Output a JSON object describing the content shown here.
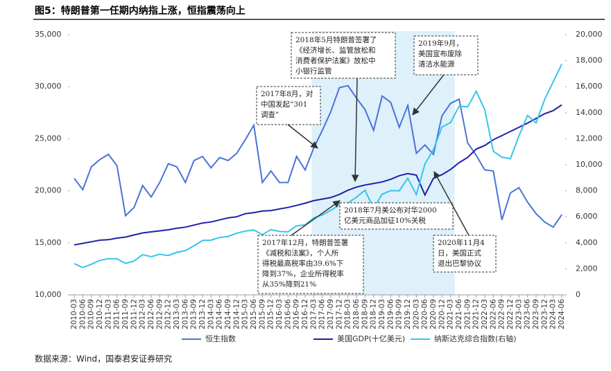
{
  "chart_data": {
    "type": "line",
    "title": "图5：特朗普第一任期内纳指上涨，恒指震荡向上",
    "source": "数据来源：Wind，国泰君安证券研究",
    "categories": [
      "2010-03",
      "2010-06",
      "2010-09",
      "2010-12",
      "2011-03",
      "2011-06",
      "2011-09",
      "2011-12",
      "2012-03",
      "2012-06",
      "2012-09",
      "2012-12",
      "2013-03",
      "2013-06",
      "2013-09",
      "2013-12",
      "2014-03",
      "2014-06",
      "2014-09",
      "2014-12",
      "2015-03",
      "2015-06",
      "2015-09",
      "2015-12",
      "2016-03",
      "2016-06",
      "2016-09",
      "2016-12",
      "2017-03",
      "2017-06",
      "2017-09",
      "2017-12",
      "2018-03",
      "2018-06",
      "2018-09",
      "2018-12",
      "2019-03",
      "2019-06",
      "2019-09",
      "2019-12",
      "2020-03",
      "2020-06",
      "2020-09",
      "2020-12",
      "2021-03",
      "2021-06",
      "2021-09",
      "2021-12",
      "2022-03",
      "2022-06",
      "2022-09",
      "2022-12",
      "2023-03",
      "2023-06",
      "2023-09",
      "2023-12",
      "2024-03",
      "2024-06"
    ],
    "series": [
      {
        "name": "恒生指数",
        "color": "#4a72d8",
        "values": [
          21200,
          20100,
          22300,
          23000,
          23500,
          22400,
          17600,
          18400,
          20500,
          19400,
          20800,
          22600,
          22300,
          20800,
          22900,
          23300,
          22200,
          23200,
          22900,
          23600,
          24900,
          26300,
          20800,
          21900,
          20800,
          20800,
          23300,
          22000,
          24100,
          25800,
          27600,
          29900,
          30100,
          28900,
          27800,
          25800,
          29100,
          28500,
          26100,
          28200,
          23600,
          24400,
          23500,
          27200,
          28400,
          28800,
          24600,
          23400,
          22000,
          21900,
          17200,
          19800,
          20300,
          18900,
          17800,
          17000,
          16500,
          17700
        ]
      },
      {
        "name": "美国GDP(十亿美元)",
        "color": "#1f1fa8",
        "values": [
          14800,
          14950,
          15100,
          15250,
          15300,
          15450,
          15550,
          15750,
          15950,
          16050,
          16150,
          16250,
          16400,
          16500,
          16700,
          16900,
          17000,
          17200,
          17400,
          17500,
          17800,
          17900,
          18050,
          18100,
          18250,
          18400,
          18600,
          18800,
          19050,
          19200,
          19350,
          19650,
          20050,
          20350,
          20550,
          20700,
          20850,
          21100,
          21450,
          21650,
          21500,
          19600,
          21200,
          21550,
          22050,
          22700,
          23200,
          24000,
          24350,
          24900,
          25300,
          25700,
          26100,
          26500,
          26950,
          27400,
          27700,
          28250
        ]
      },
      {
        "name": "纳斯达克综合指数(右轴)",
        "color": "#33c6ea",
        "axis": "y2",
        "values": [
          2400,
          2100,
          2350,
          2650,
          2780,
          2770,
          2420,
          2600,
          3090,
          2930,
          3120,
          3020,
          3270,
          3400,
          3770,
          4180,
          4200,
          4410,
          4490,
          4740,
          4900,
          4990,
          4620,
          5010,
          4870,
          4840,
          5310,
          5380,
          5910,
          6140,
          6500,
          6900,
          7060,
          7510,
          8050,
          6640,
          7730,
          8010,
          7999,
          8970,
          7700,
          10060,
          11170,
          12890,
          13250,
          14500,
          14450,
          15650,
          14220,
          11030,
          10580,
          10470,
          12220,
          13790,
          13220,
          15010,
          16380,
          17730
        ]
      }
    ],
    "ylim": [
      10000,
      35000
    ],
    "yticks": [
      {
        "value": 10000,
        "label": "10,000"
      },
      {
        "value": 15000,
        "label": "15,000"
      },
      {
        "value": 20000,
        "label": "20,000"
      },
      {
        "value": 25000,
        "label": "25,000"
      },
      {
        "value": 30000,
        "label": "30,000"
      },
      {
        "value": 35000,
        "label": "35,000"
      }
    ],
    "y2lim": [
      0,
      20000
    ],
    "y2ticks": [
      0,
      {
        "value": 2000,
        "label": "2,000"
      },
      {
        "value": 4000,
        "label": "4,000"
      },
      {
        "value": 6000,
        "label": "6,000"
      },
      {
        "value": 8000,
        "label": "8,000"
      },
      {
        "value": 10000,
        "label": "10,000"
      },
      {
        "value": 12000,
        "label": "12,000"
      },
      {
        "value": 14000,
        "label": "14,000"
      },
      {
        "value": 16000,
        "label": "16,000"
      },
      {
        "value": 18000,
        "label": "18,000"
      },
      {
        "value": 20000,
        "label": "20,000"
      }
    ],
    "legend": "bottom",
    "annotations": [
      [
        "2018年5月特朗普签署了",
        "《经济增长、监管放松和",
        "消费者保护法案》放松中",
        "小银行监管"
      ],
      [
        "2019年9月，",
        "美国宣布废除",
        "清洁水能源"
      ],
      [
        "2017年8月，对",
        "中国发起“301",
        "调查”"
      ],
      [
        "2018年7月美公布对华2000",
        "亿美元商品加征10%关税"
      ],
      [
        "2017年12月，特朗普签署",
        "《减税和法案》，个人所",
        "得税最高税率由39.6%下",
        "降到37%，企业所得税率",
        "从35%降到21%"
      ],
      [
        "2020年11月4",
        "日，美国正式",
        "退出巴黎协议"
      ]
    ]
  }
}
